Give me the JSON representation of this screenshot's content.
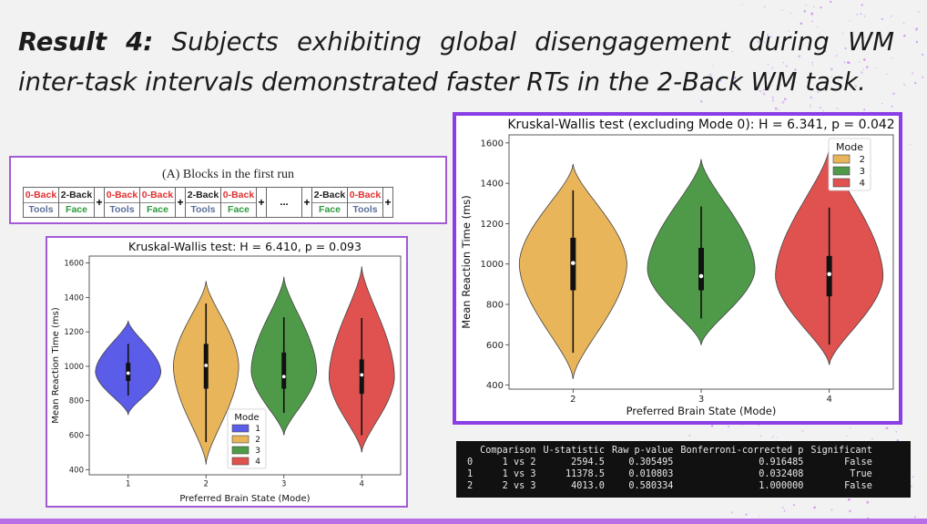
{
  "headline": {
    "label": "Result 4:",
    "text": " Subjects exhibiting global disengagement during WM inter-task intervals demonstrated faster RTs in the 2-Back WM task."
  },
  "blocks_panel": {
    "title": "(A) Blocks in the first run",
    "blocks": [
      {
        "kind": "block",
        "task": "0-Back",
        "stim": "Tools"
      },
      {
        "kind": "block",
        "task": "2-Back",
        "stim": "Face"
      },
      {
        "kind": "plus",
        "text": "+"
      },
      {
        "kind": "block",
        "task": "0-Back",
        "stim": "Tools"
      },
      {
        "kind": "block",
        "task": "0-Back",
        "stim": "Face"
      },
      {
        "kind": "plus",
        "text": "+"
      },
      {
        "kind": "block",
        "task": "2-Back",
        "stim": "Tools"
      },
      {
        "kind": "block",
        "task": "0-Back",
        "stim": "Face"
      },
      {
        "kind": "plus",
        "text": "+"
      },
      {
        "kind": "dots",
        "text": "..."
      },
      {
        "kind": "plus",
        "text": "+"
      },
      {
        "kind": "block",
        "task": "2-Back",
        "stim": "Face"
      },
      {
        "kind": "block",
        "task": "0-Back",
        "stim": "Tools"
      },
      {
        "kind": "plus",
        "text": "+"
      }
    ],
    "colors": {
      "0-Back": "#e03030",
      "2-Back": "#222222",
      "Tools": "#5a6e9a",
      "Face": "#2e9a3e"
    }
  },
  "chart_data": [
    {
      "type": "violin",
      "title": "Kruskal-Wallis test: H = 6.410, p = 0.093",
      "xlabel": "Preferred Brain State (Mode)",
      "ylabel": "Mean Reaction Time (ms)",
      "ylim": [
        370,
        1640
      ],
      "yticks": [
        400,
        600,
        800,
        1000,
        1200,
        1400,
        1600
      ],
      "categories": [
        "1",
        "2",
        "3",
        "4"
      ],
      "legend": {
        "title": "Mode",
        "placement": "lower-center",
        "entries": [
          "1",
          "2",
          "3",
          "4"
        ]
      },
      "series": [
        {
          "name": "1",
          "color": "#5b5ce8",
          "min": 720,
          "max": 1265,
          "q1": 915,
          "median": 960,
          "q3": 1020,
          "whisker_low": 830,
          "whisker_high": 1130
        },
        {
          "name": "2",
          "color": "#e9b55b",
          "min": 430,
          "max": 1495,
          "q1": 870,
          "median": 1005,
          "q3": 1130,
          "whisker_low": 560,
          "whisker_high": 1365
        },
        {
          "name": "3",
          "color": "#4f9a48",
          "min": 600,
          "max": 1520,
          "q1": 870,
          "median": 940,
          "q3": 1080,
          "whisker_low": 730,
          "whisker_high": 1285
        },
        {
          "name": "4",
          "color": "#e0524f",
          "min": 500,
          "max": 1580,
          "q1": 840,
          "median": 950,
          "q3": 1040,
          "whisker_low": 600,
          "whisker_high": 1280
        }
      ]
    },
    {
      "type": "violin",
      "title": "Kruskal-Wallis test (excluding Mode 0): H = 6.341, p = 0.042",
      "xlabel": "Preferred Brain State (Mode)",
      "ylabel": "Mean Reaction Time (ms)",
      "ylim": [
        380,
        1640
      ],
      "yticks": [
        400,
        600,
        800,
        1000,
        1200,
        1400,
        1600
      ],
      "categories": [
        "2",
        "3",
        "4"
      ],
      "legend": {
        "title": "Mode",
        "placement": "upper-right",
        "entries": [
          "2",
          "3",
          "4"
        ]
      },
      "series": [
        {
          "name": "2",
          "color": "#e9b55b",
          "min": 430,
          "max": 1495,
          "q1": 870,
          "median": 1005,
          "q3": 1130,
          "whisker_low": 560,
          "whisker_high": 1365
        },
        {
          "name": "3",
          "color": "#4f9a48",
          "min": 600,
          "max": 1520,
          "q1": 870,
          "median": 940,
          "q3": 1080,
          "whisker_low": 730,
          "whisker_high": 1285
        },
        {
          "name": "4",
          "color": "#e0524f",
          "min": 500,
          "max": 1580,
          "q1": 840,
          "median": 950,
          "q3": 1040,
          "whisker_low": 600,
          "whisker_high": 1280
        }
      ]
    }
  ],
  "stats_table": {
    "headers": [
      "",
      "Comparison",
      "U-statistic",
      "Raw p-value",
      "Bonferroni-corrected p",
      "Significant"
    ],
    "rows": [
      [
        "0",
        "1 vs 2",
        "2594.5",
        "0.305495",
        "0.916485",
        "False"
      ],
      [
        "1",
        "1 vs 3",
        "11378.5",
        "0.010803",
        "0.032408",
        "True"
      ],
      [
        "2",
        "2 vs 3",
        "4013.0",
        "0.580334",
        "1.000000",
        "False"
      ]
    ]
  }
}
